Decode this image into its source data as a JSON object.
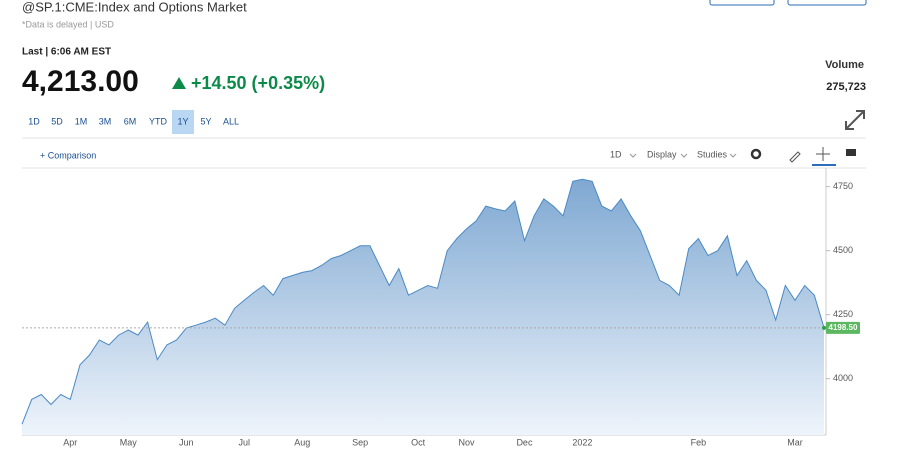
{
  "header": {
    "title": "@SP.1:CME:Index and Options Market",
    "subtitle": "*Data is delayed | USD",
    "last": "Last | 6:06 AM EST",
    "price": "4,213.00",
    "change": "+14.50 (+0.35%)",
    "volume_label": "Volume",
    "volume": "275,723"
  },
  "ranges": {
    "items": [
      "1D",
      "5D",
      "1M",
      "3M",
      "6M",
      "YTD",
      "1Y",
      "5Y",
      "ALL"
    ],
    "selected": "1Y"
  },
  "toolbar": {
    "comparison": "+ Comparison",
    "interval": "1D",
    "display": "Display",
    "studies": "Studies"
  },
  "chart_data": {
    "type": "area",
    "color": "#4a8ac4",
    "categories": [
      null,
      null,
      null,
      null,
      null,
      "Apr",
      null,
      null,
      null,
      null,
      null,
      "May",
      null,
      null,
      null,
      null,
      null,
      "Jun",
      null,
      null,
      null,
      null,
      null,
      "Jul",
      null,
      null,
      null,
      null,
      null,
      "Aug",
      null,
      null,
      null,
      null,
      null,
      "Sep",
      null,
      null,
      null,
      null,
      null,
      "Oct",
      null,
      null,
      null,
      null,
      "Nov",
      null,
      null,
      null,
      null,
      null,
      "Dec",
      null,
      null,
      null,
      null,
      null,
      "2022",
      null,
      null,
      null,
      null,
      null,
      null,
      null,
      null,
      null,
      null,
      null,
      "Feb",
      null,
      null,
      null,
      null,
      null,
      null,
      null,
      null,
      null,
      "Mar",
      null,
      null,
      null
    ],
    "values": [
      3822,
      3919,
      3938,
      3899,
      3938,
      3919,
      4054,
      4093,
      4151,
      4132,
      4170,
      4190,
      4170,
      4221,
      4074,
      4132,
      4151,
      4198,
      4209,
      4221,
      4236,
      4209,
      4275,
      4306,
      4337,
      4364,
      4326,
      4391,
      4403,
      4415,
      4422,
      4442,
      4469,
      4481,
      4500,
      4519,
      4519,
      4442,
      4364,
      4430,
      4326,
      4345,
      4364,
      4353,
      4500,
      4547,
      4585,
      4616,
      4674,
      4663,
      4655,
      4694,
      4539,
      4636,
      4702,
      4674,
      4636,
      4771,
      4779,
      4771,
      4674,
      4655,
      4702,
      4636,
      4578,
      4481,
      4384,
      4364,
      4326,
      4508,
      4547,
      4481,
      4500,
      4558,
      4403,
      4461,
      4384,
      4345,
      4229,
      4364,
      4306,
      4364,
      4326,
      4198.5
    ],
    "ylim": [
      3780,
      4815
    ],
    "yticks": [
      4000,
      4250,
      4500,
      4750
    ],
    "price_marker": {
      "value": 4198.5,
      "label": "4198.50"
    }
  }
}
